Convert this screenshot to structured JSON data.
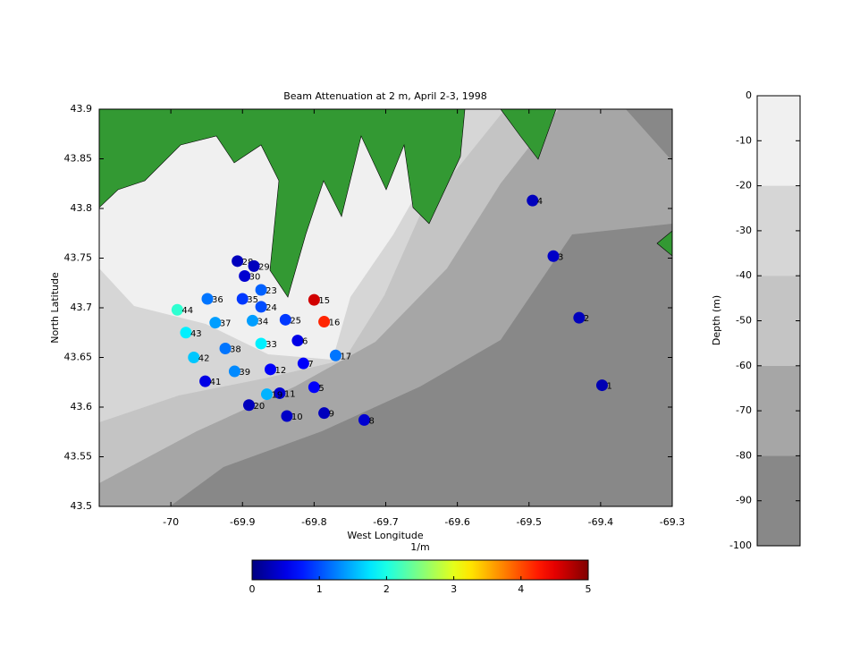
{
  "chart_data": {
    "type": "scatter",
    "title": "Beam Attenuation at 2 m, April 2-3, 1998",
    "xlabel": "West Longitude",
    "ylabel": "North Latitude",
    "xlim": [
      -70.1,
      -69.3
    ],
    "ylim": [
      43.5,
      43.9
    ],
    "xticks": [
      -70,
      -69.9,
      -69.8,
      -69.7,
      -69.6,
      -69.5,
      -69.4,
      -69.3
    ],
    "yticks": [
      43.5,
      43.55,
      43.6,
      43.65,
      43.7,
      43.75,
      43.8,
      43.85,
      43.9
    ],
    "labels": [
      "4",
      "3",
      "2",
      "1",
      "8",
      "9",
      "10",
      "20",
      "11",
      "19",
      "5",
      "12",
      "6",
      "7",
      "33",
      "28",
      "29",
      "30",
      "23",
      "35",
      "24",
      "34",
      "25",
      "36",
      "37",
      "44",
      "43",
      "38",
      "42",
      "39",
      "41",
      "17",
      "15",
      "16"
    ],
    "x": [
      -69.495,
      -69.466,
      -69.43,
      -69.398,
      -69.73,
      -69.786,
      -69.838,
      -69.891,
      -69.848,
      -69.866,
      -69.8,
      -69.861,
      -69.823,
      -69.815,
      -69.874,
      -69.907,
      -69.884,
      -69.897,
      -69.874,
      -69.9,
      -69.874,
      -69.886,
      -69.84,
      -69.949,
      -69.938,
      -69.991,
      -69.979,
      -69.924,
      -69.968,
      -69.911,
      -69.952,
      -69.77,
      -69.8,
      -69.786
    ],
    "y": [
      43.808,
      43.752,
      43.69,
      43.622,
      43.587,
      43.594,
      43.591,
      43.602,
      43.614,
      43.613,
      43.62,
      43.638,
      43.667,
      43.644,
      43.664,
      43.747,
      43.742,
      43.732,
      43.718,
      43.709,
      43.701,
      43.687,
      43.688,
      43.709,
      43.685,
      43.698,
      43.675,
      43.659,
      43.65,
      43.636,
      43.626,
      43.652,
      43.708,
      43.686
    ],
    "values": [
      0.3,
      0.35,
      0.3,
      0.25,
      0.4,
      0.3,
      0.35,
      0.3,
      0.4,
      1.5,
      0.6,
      0.6,
      0.5,
      0.6,
      1.8,
      0.3,
      0.3,
      0.4,
      1.1,
      0.9,
      1.0,
      1.4,
      0.9,
      1.2,
      1.4,
      2.1,
      1.8,
      1.2,
      1.6,
      1.3,
      0.5,
      1.2,
      4.6,
      4.2
    ],
    "colorbar": {
      "label": "1/m",
      "lim": [
        0,
        5
      ],
      "ticks": [
        0,
        1,
        2,
        3,
        4,
        5
      ],
      "colormap": "jet"
    },
    "depth_colorbar": {
      "label": "Depth (m)",
      "ylim": [
        -100,
        0
      ],
      "yticks": [
        0,
        -10,
        -20,
        -30,
        -40,
        -50,
        -60,
        -70,
        -80,
        -90,
        -100
      ],
      "levels": [
        0,
        -20,
        -40,
        -60,
        -80,
        -100
      ],
      "colors": [
        "#f0f0f0",
        "#d6d6d6",
        "#c4c4c4",
        "#a6a6a6",
        "#888888"
      ]
    }
  }
}
